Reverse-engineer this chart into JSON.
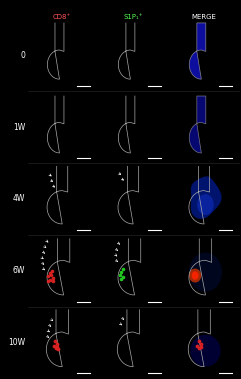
{
  "title_labels": [
    "CD8⁺",
    "S1P₁⁺",
    "MERGE"
  ],
  "title_colors": [
    "#ff5555",
    "#55ff55",
    "#ffffff"
  ],
  "row_labels": [
    "0",
    "1W",
    "4W",
    "6W",
    "10W"
  ],
  "n_rows": 5,
  "n_cols": 3,
  "fig_bg": "#000000",
  "label_fontsize": 5.5,
  "title_fontsize": 5.0,
  "row_label_fontsize": 5.5
}
